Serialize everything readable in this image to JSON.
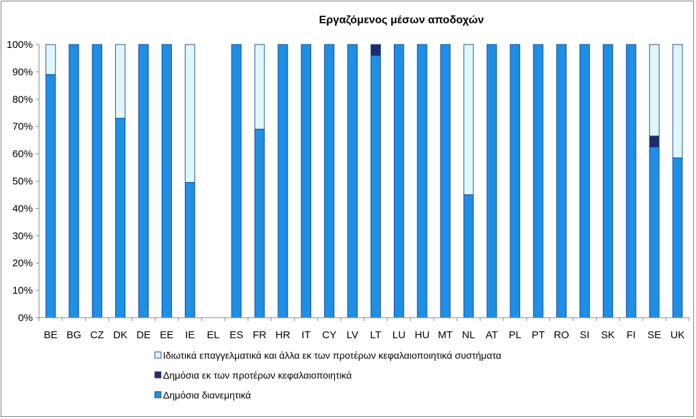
{
  "chart_data": {
    "type": "bar",
    "stacked": true,
    "title": "Εργαζόμενος μέσων αποδοχών",
    "categories": [
      "BE",
      "BG",
      "CZ",
      "DK",
      "DE",
      "EE",
      "IE",
      "EL",
      "ES",
      "FR",
      "HR",
      "IT",
      "CY",
      "LV",
      "LT",
      "LU",
      "HU",
      "MT",
      "NL",
      "AT",
      "PL",
      "PT",
      "RO",
      "SI",
      "SK",
      "FI",
      "SE",
      "UK"
    ],
    "y_tick_labels": [
      "0%",
      "10%",
      "20%",
      "30%",
      "40%",
      "50%",
      "60%",
      "70%",
      "80%",
      "90%",
      "100%"
    ],
    "ylim": [
      0,
      100
    ],
    "grid": false,
    "legend_position": "bottom",
    "series": [
      {
        "name": "Δημόσια διανεμητικά",
        "color": "#1f8fe6",
        "values": [
          89,
          100,
          100,
          73,
          100,
          100,
          49.5,
          0,
          100,
          69,
          100,
          100,
          100,
          100,
          96,
          100,
          100,
          100,
          45,
          100,
          100,
          100,
          100,
          100,
          100,
          100,
          62.5,
          58.5
        ]
      },
      {
        "name": "Δημόσια εκ των προτέρων κεφαλαιοποιητικά",
        "color": "#1f2c6b",
        "values": [
          0,
          0,
          0,
          0,
          0,
          0,
          0,
          0,
          0,
          0,
          0,
          0,
          0,
          0,
          4,
          0,
          0,
          0,
          0,
          0,
          0,
          0,
          0,
          0,
          0,
          0,
          4,
          0
        ]
      },
      {
        "name": "Ιδιωτικά επαγγελματικά και άλλα εκ των προτέρων κεφαλαιοποιητικά συστήματα",
        "color": "#dff6fb",
        "values": [
          11,
          0,
          0,
          27,
          0,
          0,
          50.5,
          0,
          0,
          31,
          0,
          0,
          0,
          0,
          0,
          0,
          0,
          0,
          55,
          0,
          0,
          0,
          0,
          0,
          0,
          0,
          33.5,
          41.5
        ]
      }
    ],
    "legend_order": [
      "Ιδιωτικά επαγγελματικά και άλλα εκ των προτέρων κεφαλαιοποιητικά συστήματα",
      "Δημόσια εκ των προτέρων κεφαλαιοποιητικά",
      "Δημόσια διανεμητικά"
    ]
  }
}
